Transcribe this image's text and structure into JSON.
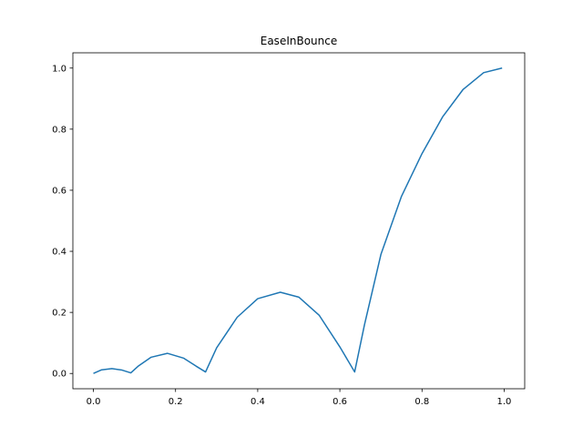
{
  "chart_data": {
    "type": "line",
    "title": "EaseInBounce",
    "xlabel": "",
    "ylabel": "",
    "xlim": [
      -0.05,
      1.05
    ],
    "ylim": [
      -0.05,
      1.05
    ],
    "grid": false,
    "x_ticks": [
      0.0,
      0.2,
      0.4,
      0.6,
      0.8,
      1.0
    ],
    "x_tick_labels": [
      "0.0",
      "0.2",
      "0.4",
      "0.6",
      "0.8",
      "1.0"
    ],
    "y_ticks": [
      0.0,
      0.2,
      0.4,
      0.6,
      0.8,
      1.0
    ],
    "y_tick_labels": [
      "0.0",
      "0.2",
      "0.4",
      "0.6",
      "0.8",
      "1.0"
    ],
    "series": [
      {
        "color": "#1f77b4",
        "x": [
          0.0,
          0.02,
          0.045,
          0.07,
          0.091,
          0.11,
          0.14,
          0.18,
          0.22,
          0.25,
          0.273,
          0.3,
          0.35,
          0.4,
          0.455,
          0.5,
          0.55,
          0.6,
          0.636,
          0.66,
          0.7,
          0.75,
          0.8,
          0.85,
          0.9,
          0.95,
          0.995
        ],
        "y": [
          0.0,
          0.012,
          0.016,
          0.011,
          0.002,
          0.025,
          0.053,
          0.066,
          0.05,
          0.024,
          0.005,
          0.084,
          0.184,
          0.245,
          0.266,
          0.25,
          0.19,
          0.087,
          0.005,
          0.16,
          0.39,
          0.58,
          0.72,
          0.84,
          0.93,
          0.985,
          1.0
        ]
      }
    ]
  }
}
